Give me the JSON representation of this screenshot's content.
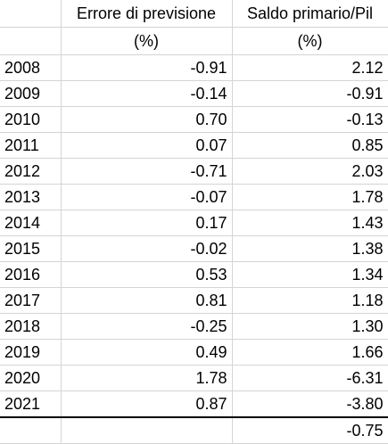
{
  "headers": {
    "year": "",
    "col1_line1": "Errore di previsione",
    "col1_line2": "(%)",
    "col2_line1": "Saldo primario/Pil",
    "col2_line2": "(%)"
  },
  "rows": [
    {
      "year": "2008",
      "errore": "-0.91",
      "saldo": "2.12"
    },
    {
      "year": "2009",
      "errore": "-0.14",
      "saldo": "-0.91"
    },
    {
      "year": "2010",
      "errore": "0.70",
      "saldo": "-0.13"
    },
    {
      "year": "2011",
      "errore": "0.07",
      "saldo": "0.85"
    },
    {
      "year": "2012",
      "errore": "-0.71",
      "saldo": "2.03"
    },
    {
      "year": "2013",
      "errore": "-0.07",
      "saldo": "1.78"
    },
    {
      "year": "2014",
      "errore": "0.17",
      "saldo": "1.43"
    },
    {
      "year": "2015",
      "errore": "-0.02",
      "saldo": "1.38"
    },
    {
      "year": "2016",
      "errore": "0.53",
      "saldo": "1.34"
    },
    {
      "year": "2017",
      "errore": "0.81",
      "saldo": "1.18"
    },
    {
      "year": "2018",
      "errore": "-0.25",
      "saldo": "1.30"
    },
    {
      "year": "2019",
      "errore": "0.49",
      "saldo": "1.66"
    },
    {
      "year": "2020",
      "errore": "1.78",
      "saldo": "-6.31"
    },
    {
      "year": "2021",
      "errore": "0.87",
      "saldo": "-3.80"
    }
  ],
  "total": {
    "year": "",
    "errore": "",
    "saldo": "-0.75"
  }
}
